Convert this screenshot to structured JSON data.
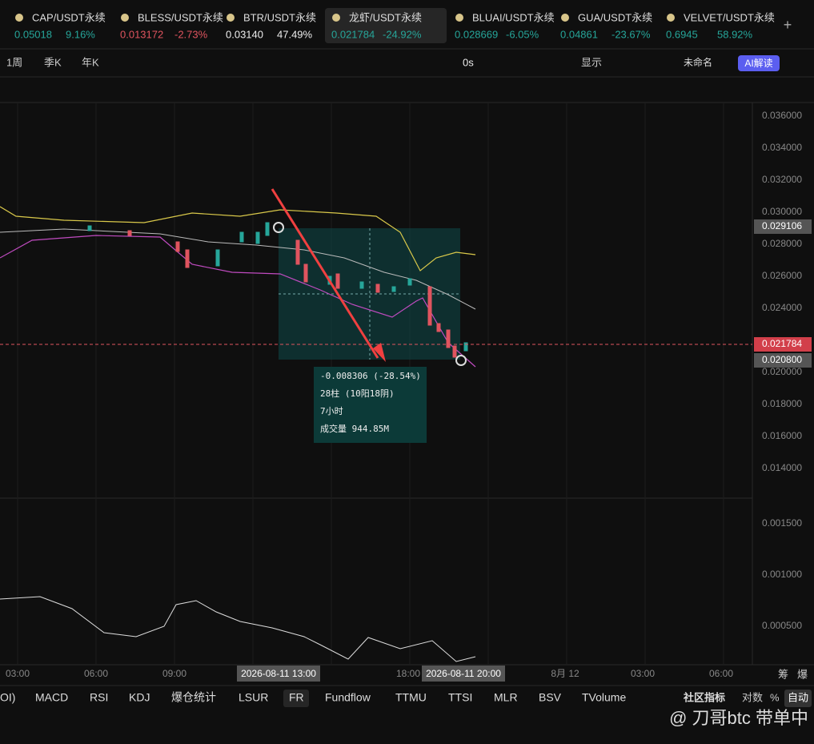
{
  "tickers": [
    {
      "name": "CAP/USDT永续",
      "price": "0.05018",
      "change": "9.16%"
    },
    {
      "name": "BLESS/USDT永续",
      "price": "0.013172",
      "change": "-2.73%"
    },
    {
      "name": "BTR/USDT永续",
      "price": "0.03140",
      "change": "47.49%"
    },
    {
      "name": "龙虾/USDT永续",
      "price": "0.021784",
      "change": "-24.92%"
    },
    {
      "name": "BLUAI/USDT永续",
      "price": "0.028669",
      "change": "-6.05%"
    },
    {
      "name": "GUA/USDT永续",
      "price": "0.04861",
      "change": "-23.67%"
    },
    {
      "name": "VELVET/USDT永续",
      "price": "0.6945",
      "change": "58.92%"
    }
  ],
  "toolbar": {
    "periods": [
      "1周",
      "季K",
      "年K"
    ],
    "refresh": "0s",
    "display": "显示",
    "layout_name": "未命名",
    "ai_button": "AI解读"
  },
  "price_axis": [
    "0.036000",
    "0.034000",
    "0.032000",
    "0.030000",
    "0.028000",
    "0.026000",
    "0.024000",
    "0.020000",
    "0.018000",
    "0.016000",
    "0.014000",
    "0.001500",
    "0.001000",
    "0.000500"
  ],
  "price_badges": {
    "high": "0.029106",
    "last": "0.021784",
    "low": "0.020800"
  },
  "time_axis": [
    "03:00",
    "06:00",
    "09:00",
    "2026-08-11 13:00",
    "18:00",
    "2026-08-11 20:00",
    "8月 12",
    "03:00",
    "06:00"
  ],
  "axis_buttons": [
    "筹",
    "爆"
  ],
  "measure": [
    "-0.008306 (-28.54%)",
    "28柱 (10阳18阴)",
    "7小时",
    "成交量 944.85M"
  ],
  "indicator_tabs": [
    "OI)",
    "MACD",
    "RSI",
    "KDJ",
    "爆仓统计",
    "LSUR",
    "FR",
    "Fundflow",
    "TTMU",
    "TTSI",
    "MLR",
    "BSV",
    "TVolume"
  ],
  "bottom_right": {
    "community": "社区指标",
    "log": "对数",
    "percent": "%",
    "auto": "自动"
  },
  "watermark": "@ 刀哥btc 带单中"
}
